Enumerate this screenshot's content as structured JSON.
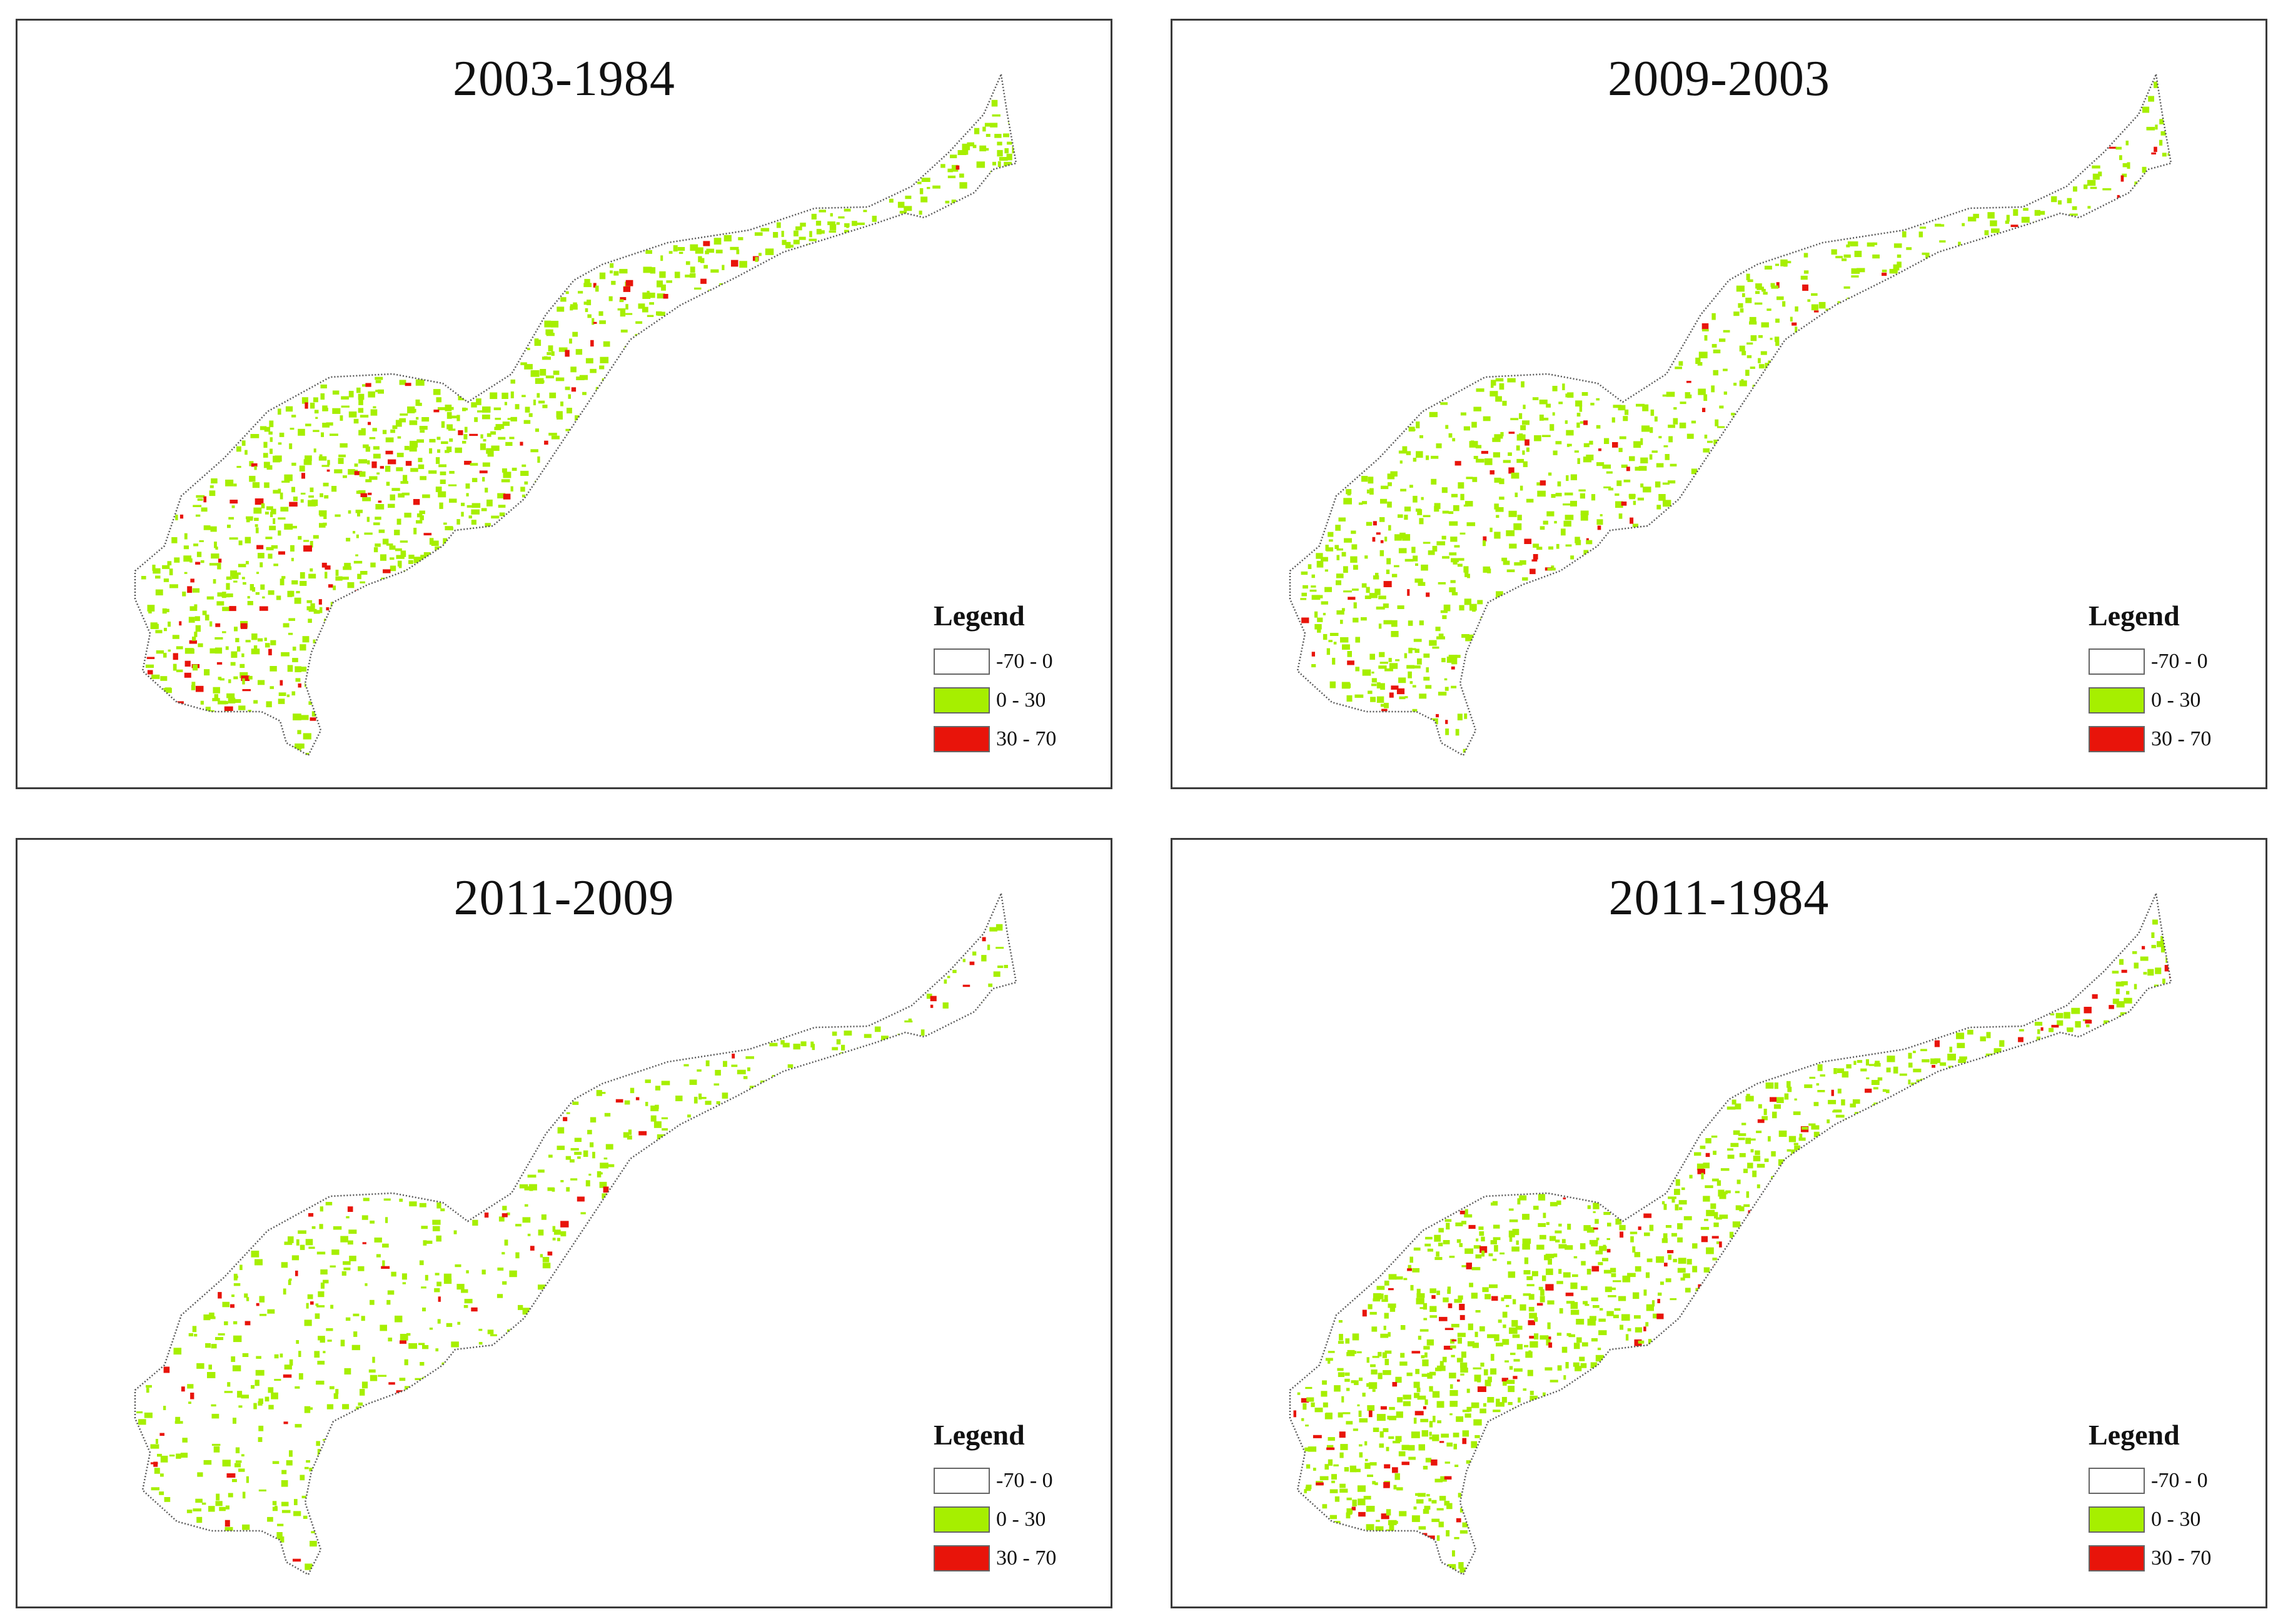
{
  "legend": {
    "title": "Legend",
    "classes": [
      {
        "label": "-70 - 0",
        "color": "#ffffff"
      },
      {
        "label": "0 - 30",
        "color": "#a6ef00"
      },
      {
        "label": "30 - 70",
        "color": "#e8140a"
      }
    ]
  },
  "maps": [
    {
      "title": "2003-1984",
      "green_share": 0.34,
      "red_share": 0.035
    },
    {
      "title": "2009-2003",
      "green_share": 0.26,
      "red_share": 0.02
    },
    {
      "title": "2011-2009",
      "green_share": 0.18,
      "red_share": 0.018
    },
    {
      "title": "2011-1984",
      "green_share": 0.32,
      "red_share": 0.04
    }
  ],
  "colors": {
    "frame": "#3a3a3a",
    "outline": "#555555",
    "increase_low": "#a6ef00",
    "increase_high": "#e8140a",
    "decrease": "#ffffff"
  }
}
